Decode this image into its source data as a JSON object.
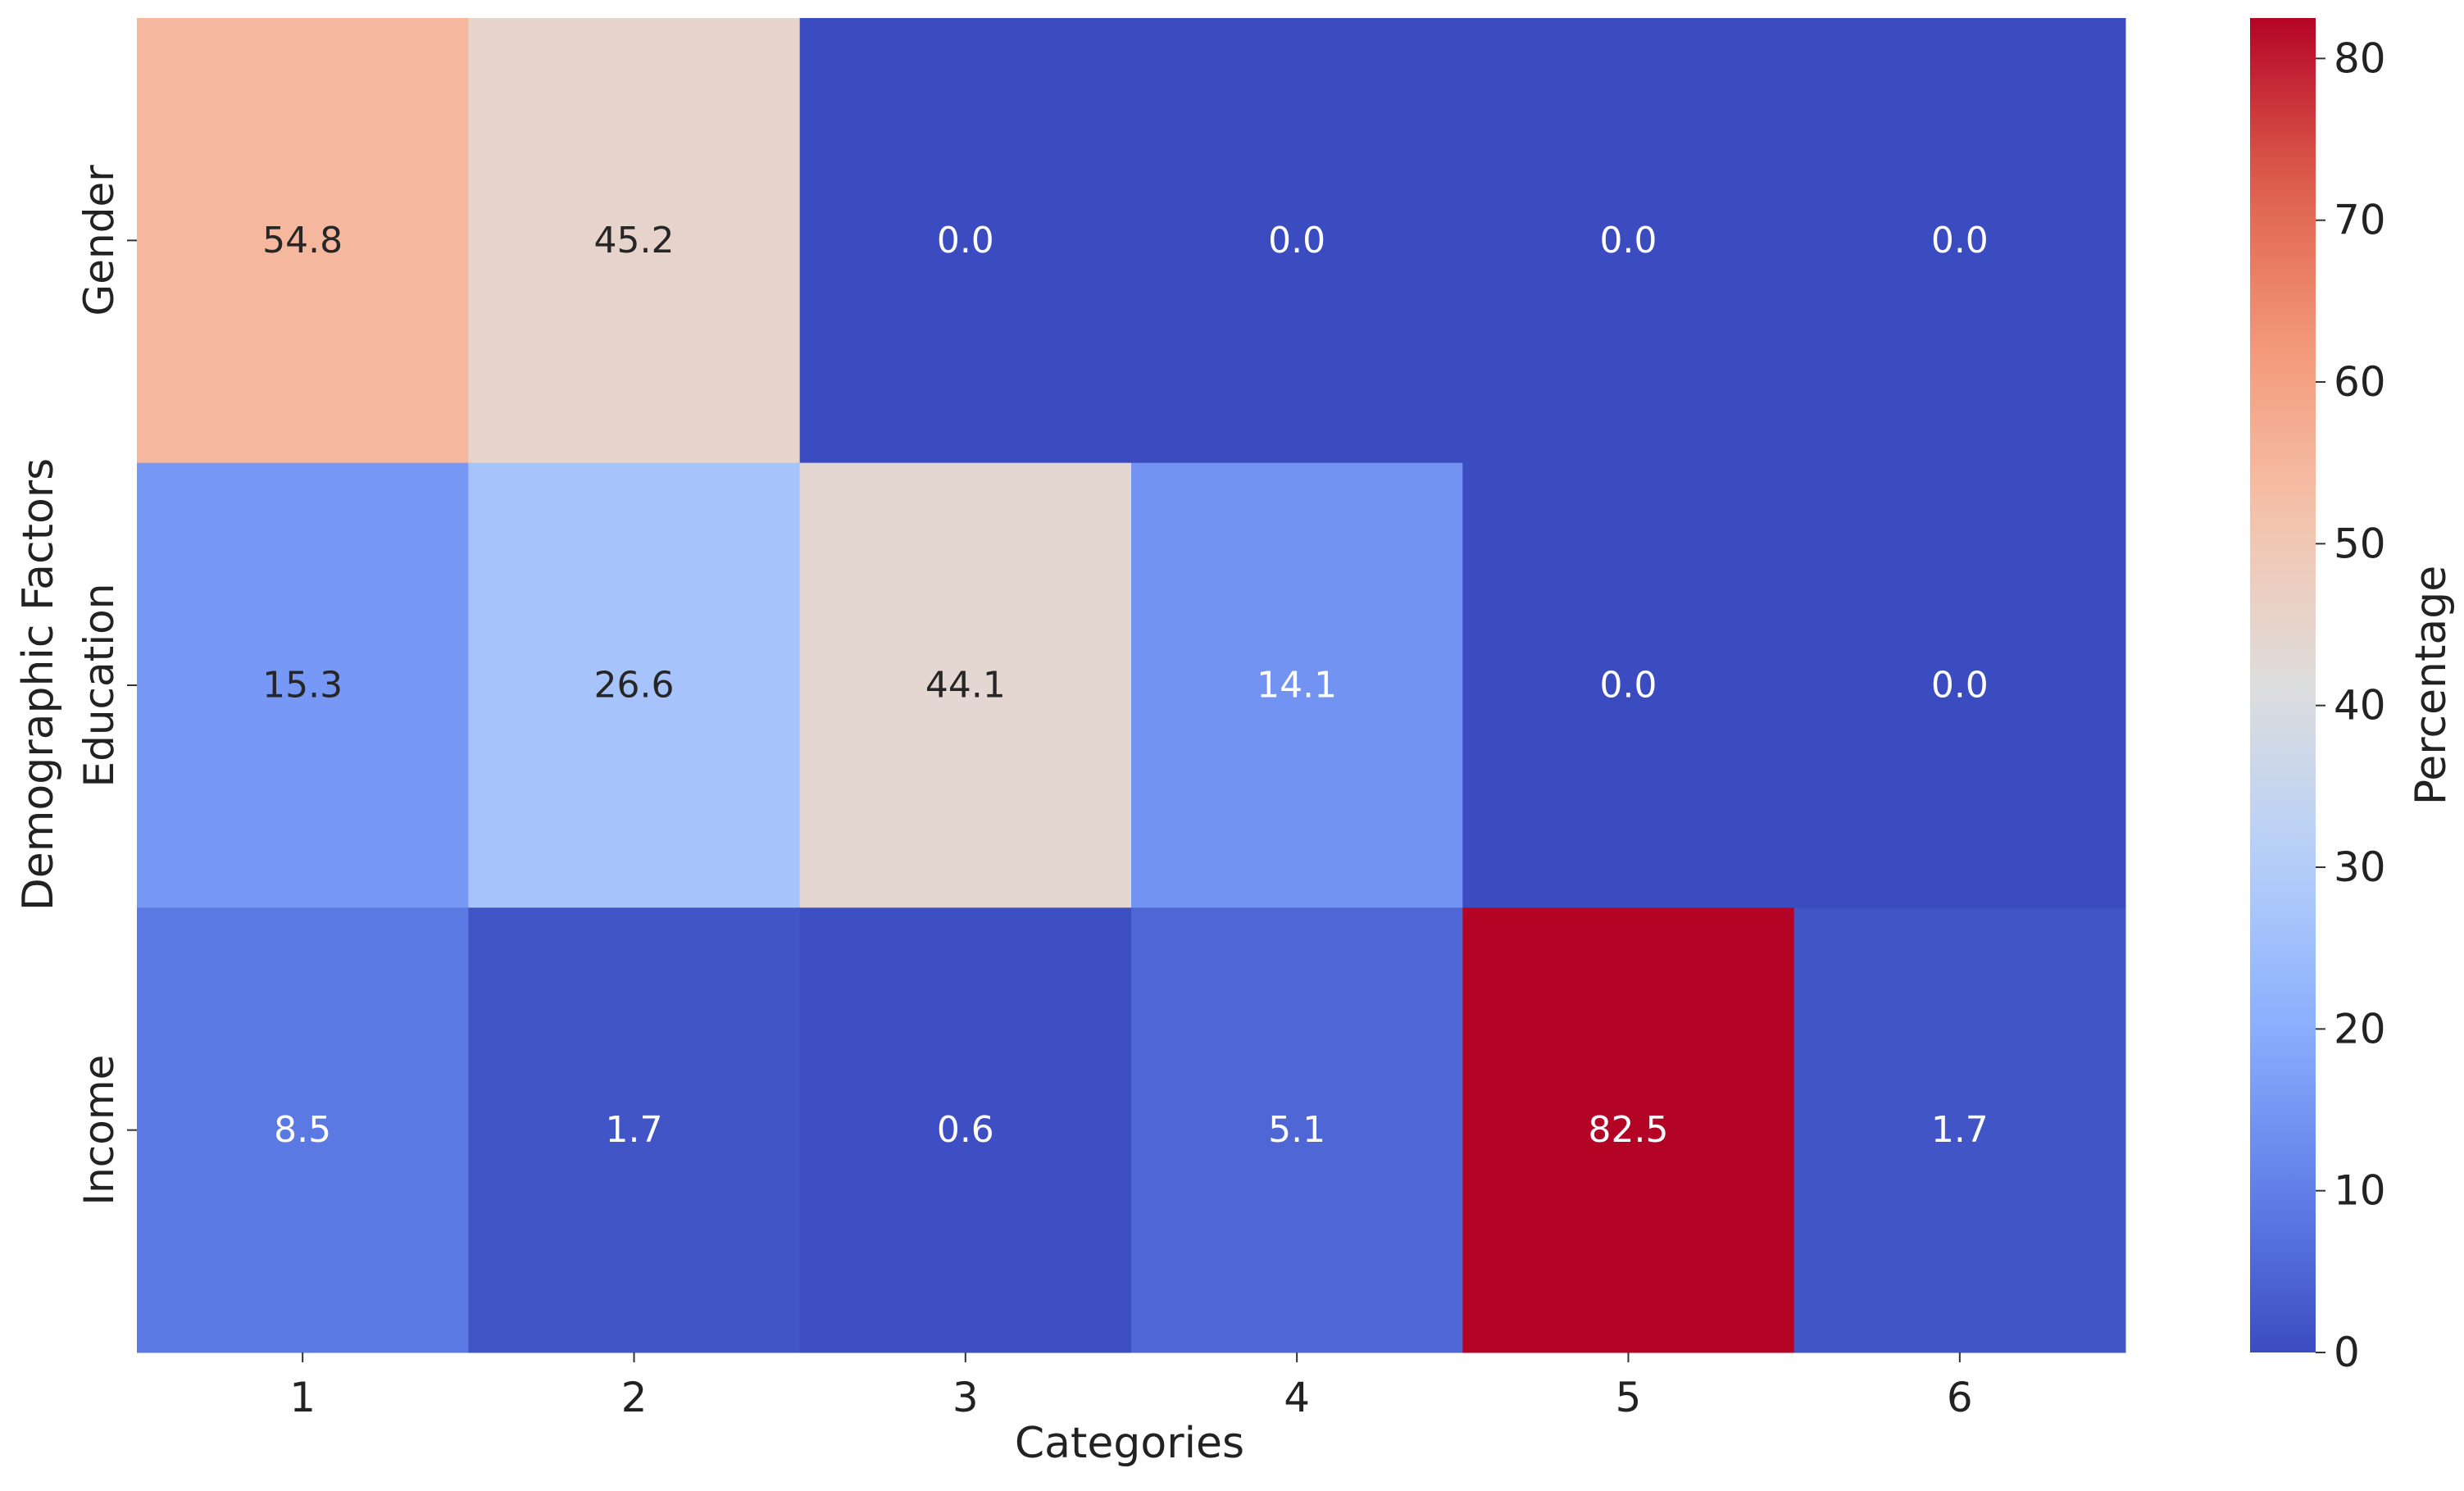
{
  "chart_data": {
    "type": "heatmap",
    "xlabel": "Categories",
    "ylabel": "Demographic Factors",
    "x_categories": [
      "1",
      "2",
      "3",
      "4",
      "5",
      "6"
    ],
    "y_categories": [
      "Gender",
      "Education",
      "Income"
    ],
    "values": [
      [
        54.8,
        45.2,
        0.0,
        0.0,
        0.0,
        0.0
      ],
      [
        15.3,
        26.6,
        44.1,
        14.1,
        0.0,
        0.0
      ],
      [
        8.5,
        1.7,
        0.6,
        5.1,
        82.5,
        1.7
      ]
    ],
    "value_labels": [
      [
        "54.8",
        "45.2",
        "0.0",
        "0.0",
        "0.0",
        "0.0"
      ],
      [
        "15.3",
        "26.6",
        "44.1",
        "14.1",
        "0.0",
        "0.0"
      ],
      [
        "8.5",
        "1.7",
        "0.6",
        "5.1",
        "82.5",
        "1.7"
      ]
    ],
    "colormap": "coolwarm",
    "colorbar": {
      "label": "Percentage",
      "range": [
        0,
        82.5
      ],
      "ticks": [
        "0",
        "10",
        "20",
        "30",
        "40",
        "50",
        "60",
        "70",
        "80"
      ]
    },
    "grid": false,
    "legend": "colorbar-right"
  }
}
